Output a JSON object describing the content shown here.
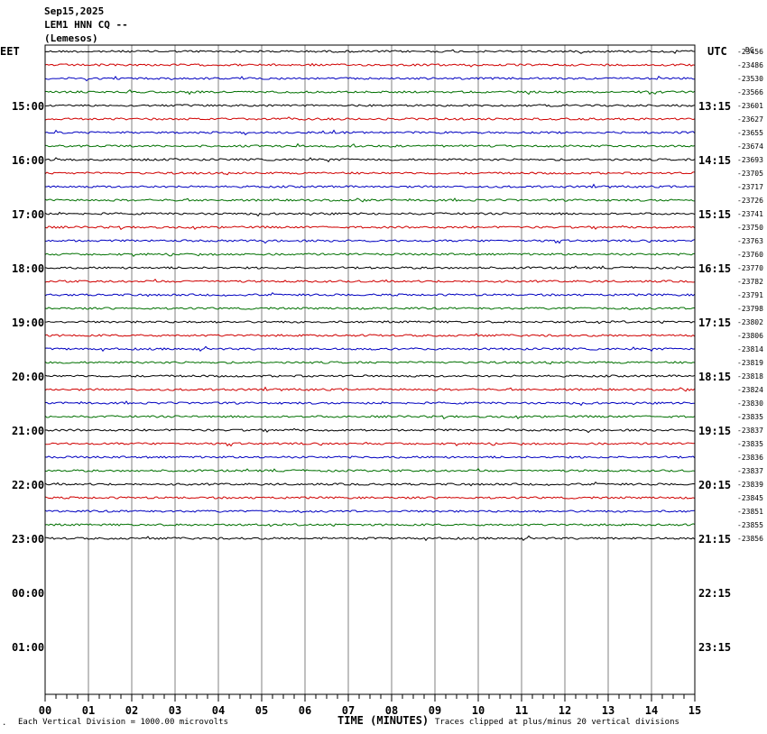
{
  "header": {
    "date": "Sep15,2025",
    "station": "LEM1 HNN CQ --",
    "location": "(Lemesos)"
  },
  "left_tz": "EET",
  "right_tz": "UTC",
  "dc_label": "DC",
  "footer": {
    "scale_note": "Each Vertical Division = 1000.00 microvolts",
    "xlabel": "TIME (MINUTES)",
    "clip_note": "Traces clipped at plus/minus 20 vertical divisions",
    "corner_mark": "."
  },
  "colors": {
    "trace_cycle": [
      "#000000",
      "#d00000",
      "#0000c0",
      "#007000"
    ],
    "grid": "#808080"
  },
  "chart_data": {
    "type": "line",
    "title": "LEM1 HNN CQ --",
    "xlabel": "TIME (MINUTES)",
    "x_ticks": [
      "00",
      "01",
      "02",
      "03",
      "04",
      "05",
      "06",
      "07",
      "08",
      "09",
      "10",
      "11",
      "12",
      "13",
      "14",
      "15"
    ],
    "xlim": [
      0,
      15
    ],
    "left_hour_labels": [
      "15:00",
      "16:00",
      "17:00",
      "18:00",
      "19:00",
      "20:00",
      "21:00",
      "22:00",
      "23:00",
      "00:00",
      "01:00"
    ],
    "right_hour_labels": [
      "13:15",
      "14:15",
      "15:15",
      "16:15",
      "17:15",
      "18:15",
      "19:15",
      "20:15",
      "21:15",
      "22:15",
      "23:15"
    ],
    "trace_dc_offsets": [
      "-23456",
      "-23486",
      "-23530",
      "-23566",
      "-23601",
      "-23627",
      "-23655",
      "-23674",
      "-23693",
      "-23705",
      "-23717",
      "-23726",
      "-23741",
      "-23750",
      "-23763",
      "-23760",
      "-23770",
      "-23782",
      "-23791",
      "-23798",
      "-23802",
      "-23806",
      "-23814",
      "-23819",
      "-23818",
      "-23824",
      "-23830",
      "-23835",
      "-23837",
      "-23835",
      "-23836",
      "-23837",
      "-23839",
      "-23845",
      "-23851",
      "-23855",
      "-23856"
    ],
    "traces_recorded": 37,
    "minutes_per_row": 15
  }
}
